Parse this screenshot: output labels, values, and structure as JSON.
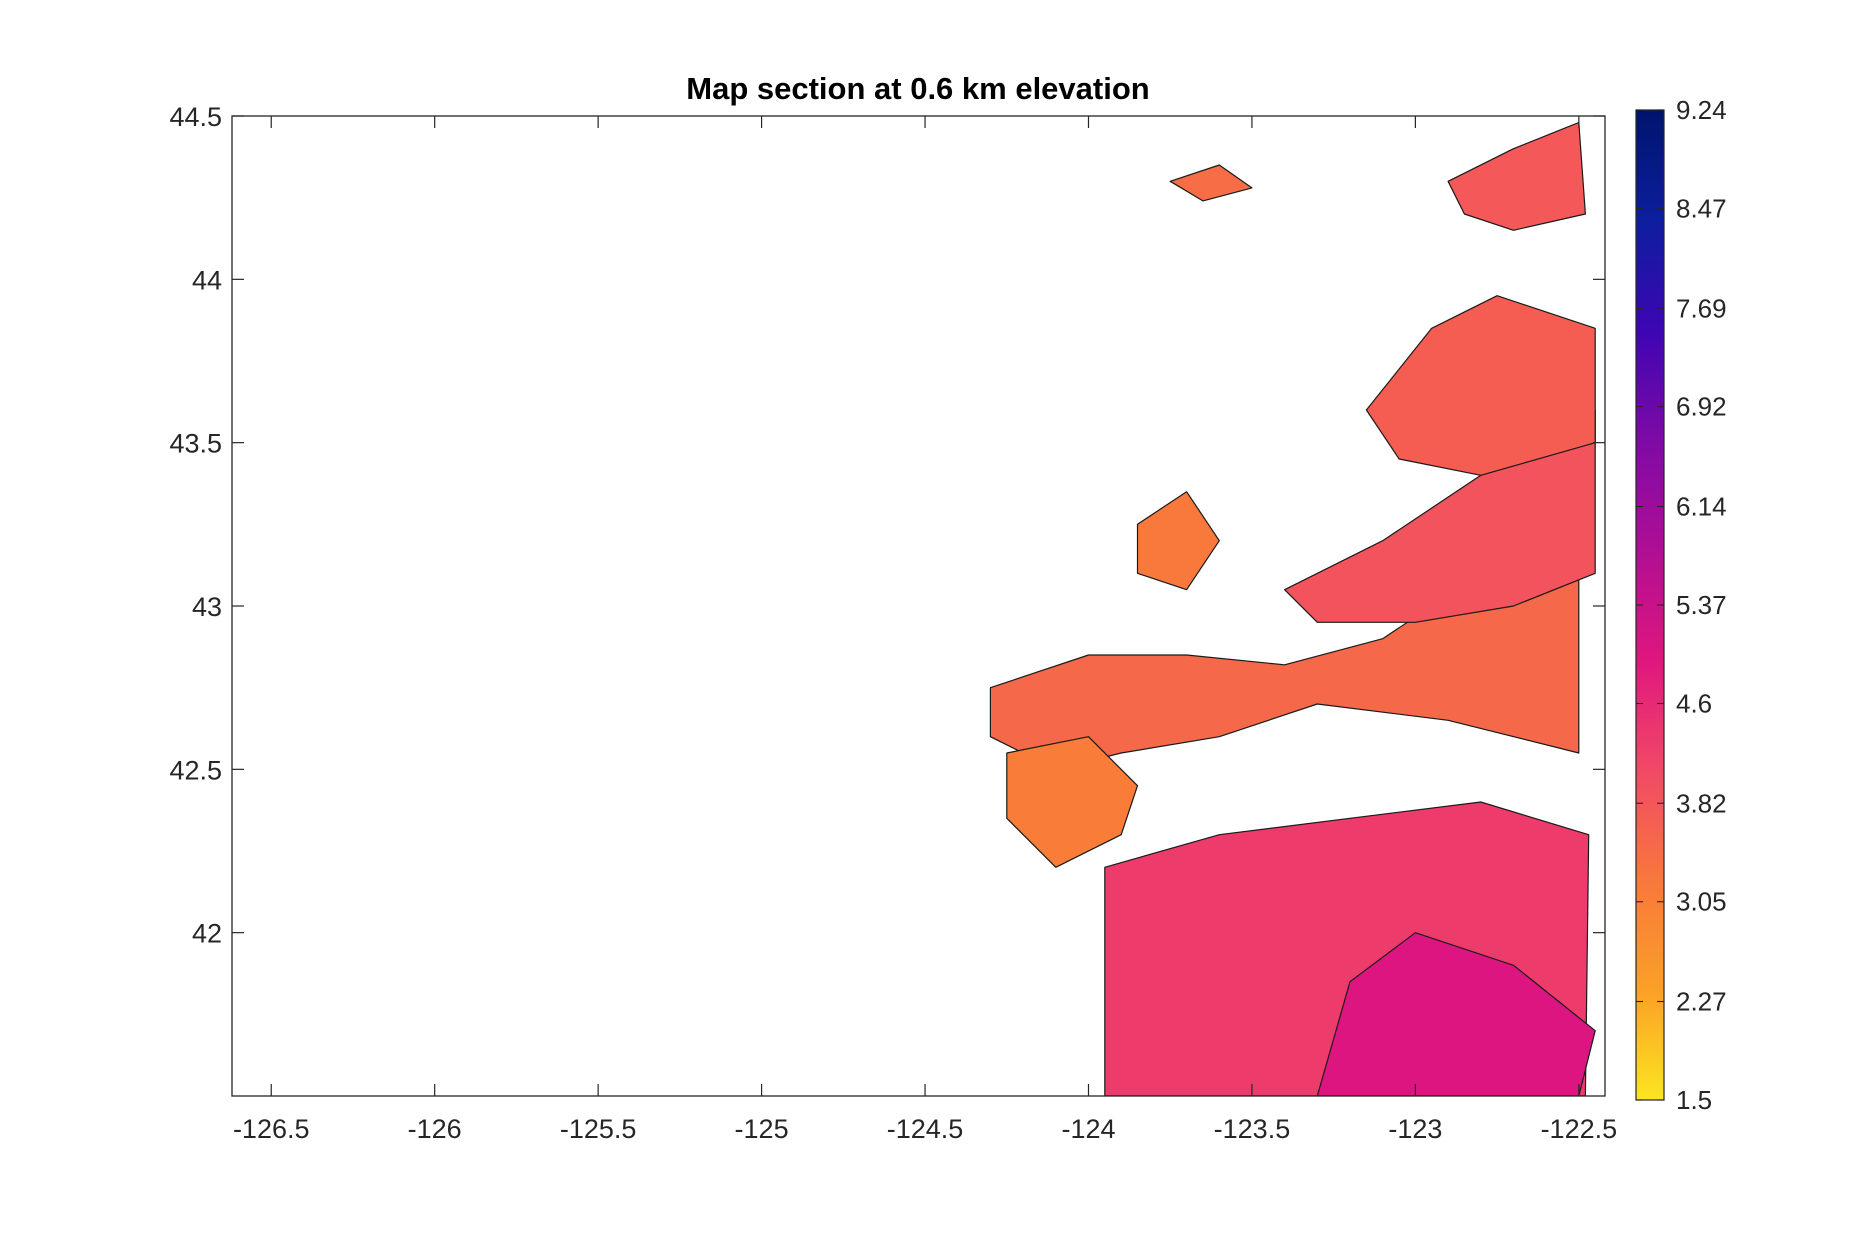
{
  "chart_data": {
    "type": "heatmap",
    "title": "Map section at 0.6 km elevation",
    "xlabel": "",
    "ylabel": "",
    "xlim": [
      -126.62,
      -122.42
    ],
    "ylim": [
      41.5,
      44.5
    ],
    "x_ticks": [
      -126.5,
      -126,
      -125.5,
      -125,
      -124.5,
      -124,
      -123.5,
      -123,
      -122.5
    ],
    "x_tick_labels": [
      "-126.5",
      "-126",
      "-125.5",
      "-125",
      "-124.5",
      "-124",
      "-123.5",
      "-123",
      "-122.5"
    ],
    "y_ticks": [
      42,
      42.5,
      43,
      43.5,
      44,
      44.5
    ],
    "y_tick_labels": [
      "42",
      "42.5",
      "43",
      "43.5",
      "44",
      "44.5"
    ],
    "grid": false,
    "legend": "none",
    "colorbar": {
      "position": "right",
      "range": [
        1.5,
        9.24
      ],
      "ticks": [
        1.5,
        2.27,
        3.05,
        3.82,
        4.6,
        5.37,
        6.14,
        6.92,
        7.69,
        8.47,
        9.24
      ],
      "tick_labels": [
        "1.5",
        "2.27",
        "3.05",
        "3.82",
        "4.6",
        "5.37",
        "6.14",
        "6.92",
        "7.69",
        "8.47",
        "9.24"
      ],
      "colors": [
        "#fbe51f",
        "#fba027",
        "#f9773c",
        "#f14966",
        "#e0167e",
        "#b00e94",
        "#7e0aa6",
        "#3d05b4",
        "#0d1e9f",
        "#00146c"
      ]
    },
    "regions": [
      {
        "lon": [
          -124.3,
          -124.0,
          -123.7,
          -123.4,
          -123.1,
          -122.8,
          -122.5,
          -122.5,
          -122.9,
          -123.3,
          -123.6,
          -123.9,
          -124.1,
          -124.3
        ],
        "lat": [
          42.75,
          42.85,
          42.85,
          42.82,
          42.9,
          43.1,
          43.3,
          42.55,
          42.65,
          42.7,
          42.6,
          42.55,
          42.5,
          42.6
        ],
        "value": 3.5
      },
      {
        "lon": [
          -123.95,
          -123.6,
          -123.3,
          -122.9,
          -122.6,
          -122.48,
          -122.47,
          -122.8,
          -123.2,
          -123.6,
          -123.95
        ],
        "lat": [
          41.5,
          41.5,
          41.5,
          41.5,
          41.5,
          41.5,
          42.3,
          42.4,
          42.35,
          42.3,
          42.2
        ],
        "value": 4.3
      },
      {
        "lon": [
          -123.4,
          -123.1,
          -122.8,
          -122.45,
          -122.45,
          -122.7,
          -123.0,
          -123.3
        ],
        "lat": [
          43.05,
          43.2,
          43.4,
          43.6,
          43.1,
          43.0,
          42.95,
          42.95
        ],
        "value": 3.9
      },
      {
        "lon": [
          -123.15,
          -122.95,
          -122.75,
          -122.45,
          -122.45,
          -122.8,
          -123.05
        ],
        "lat": [
          43.6,
          43.85,
          43.95,
          43.85,
          43.5,
          43.4,
          43.45
        ],
        "value": 3.7
      },
      {
        "lon": [
          -123.3,
          -123.1,
          -122.8,
          -122.5,
          -122.45,
          -122.7,
          -123.0,
          -123.2
        ],
        "lat": [
          41.5,
          41.5,
          41.5,
          41.5,
          41.7,
          41.9,
          42.0,
          41.85
        ],
        "value": 5.0
      },
      {
        "lon": [
          -124.25,
          -124.0,
          -123.85,
          -123.9,
          -124.1,
          -124.25
        ],
        "lat": [
          42.55,
          42.6,
          42.45,
          42.3,
          42.2,
          42.35
        ],
        "value": 3.1
      },
      {
        "lon": [
          -123.85,
          -123.7,
          -123.6,
          -123.7,
          -123.85
        ],
        "lat": [
          43.25,
          43.35,
          43.2,
          43.05,
          43.1
        ],
        "value": 3.2
      },
      {
        "lon": [
          -122.9,
          -122.7,
          -122.5,
          -122.48,
          -122.7,
          -122.85
        ],
        "lat": [
          44.3,
          44.4,
          44.48,
          44.2,
          44.15,
          44.2
        ],
        "value": 3.8
      },
      {
        "lon": [
          -123.75,
          -123.6,
          -123.5,
          -123.65
        ],
        "lat": [
          44.3,
          44.35,
          44.28,
          44.24
        ],
        "value": 3.4
      }
    ]
  }
}
